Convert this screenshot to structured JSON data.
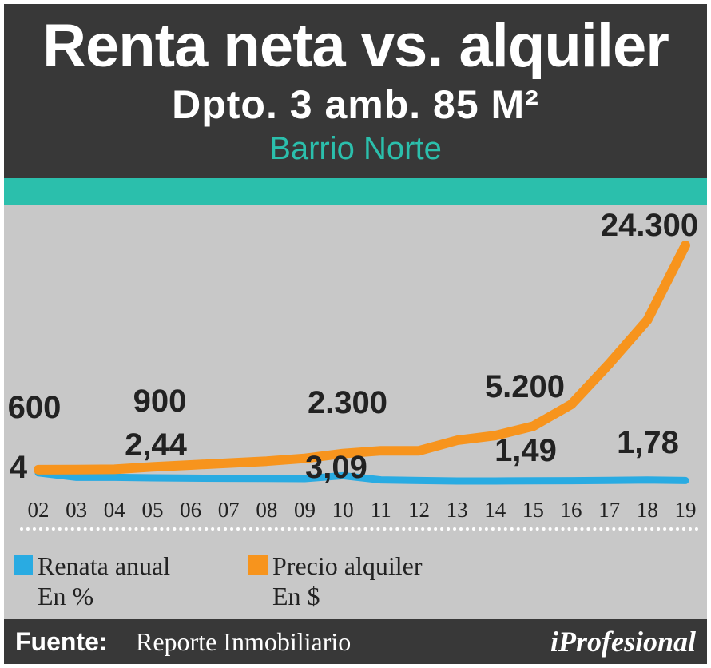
{
  "header": {
    "title": "Renta neta vs. alquiler",
    "subtitle": "Dpto. 3 amb. 85 M²",
    "place": "Barrio Norte"
  },
  "colors": {
    "rent": "#f7941d",
    "yield": "#29abe2",
    "accent": "#2bbfac",
    "dark": "#383838"
  },
  "chart_data": {
    "type": "line",
    "categories": [
      "02",
      "03",
      "04",
      "05",
      "06",
      "07",
      "08",
      "09",
      "10",
      "11",
      "12",
      "13",
      "14",
      "15",
      "16",
      "17",
      "18",
      "19"
    ],
    "series": [
      {
        "name": "Precio alquiler",
        "values": [
          600,
          620,
          640,
          900,
          1100,
          1300,
          1500,
          1800,
          2300,
          2600,
          2600,
          3700,
          4200,
          5200,
          7500,
          11800,
          16400,
          24300
        ]
      },
      {
        "name": "Renata anual",
        "values": [
          4,
          2.6,
          2.6,
          2.44,
          2.35,
          2.3,
          2.25,
          2.2,
          3.09,
          1.8,
          1.6,
          1.45,
          1.46,
          1.49,
          1.55,
          1.65,
          1.78,
          1.6
        ]
      }
    ],
    "data_labels": {
      "rent": [
        {
          "category": "02",
          "text": "600"
        },
        {
          "category": "05",
          "text": "900"
        },
        {
          "category": "10",
          "text": "2.300"
        },
        {
          "category": "15",
          "text": "5.200"
        },
        {
          "category": "19",
          "text": "24.300"
        }
      ],
      "yield": [
        {
          "category": "02",
          "text": "4"
        },
        {
          "category": "05",
          "text": "2,44"
        },
        {
          "category": "10",
          "text": "3,09"
        },
        {
          "category": "15",
          "text": "1,49"
        },
        {
          "category": "18",
          "text": "1,78"
        }
      ]
    },
    "legend": [
      {
        "series": "Renata anual",
        "line1": "Renata anual",
        "line2": "En %"
      },
      {
        "series": "Precio alquiler",
        "line1": "Precio alquiler",
        "line2": "En $"
      }
    ],
    "legend_position": "bottom-left",
    "grid": false
  },
  "footer": {
    "source_label": "Fuente:",
    "source_value": "Reporte Inmobiliario",
    "brand": "iProfesional"
  }
}
